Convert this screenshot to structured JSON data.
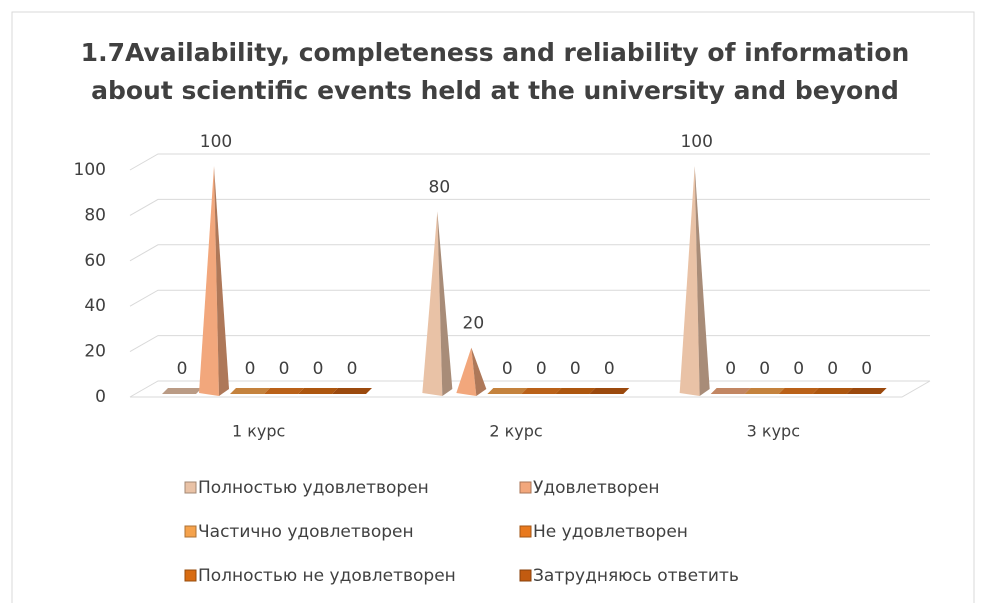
{
  "chart_data": {
    "type": "pyramid3d",
    "title": "1.7Availability, completeness and reliability of information about scientific events held at the university and beyond",
    "categories": [
      "1 курс",
      "2 курс",
      "3 курс"
    ],
    "series": [
      {
        "name": "Полностью удовлетворен",
        "color": "#e9c2a6",
        "values": [
          0,
          80,
          100
        ]
      },
      {
        "name": "Удовлетворен",
        "color": "#f2a77c",
        "values": [
          100,
          20,
          0
        ]
      },
      {
        "name": "Частично удовлетворен",
        "color": "#f5a24c",
        "values": [
          0,
          0,
          0
        ]
      },
      {
        "name": "Не удовлетворен",
        "color": "#e8791e",
        "values": [
          0,
          0,
          0
        ]
      },
      {
        "name": "Полностью не удовлетворен",
        "color": "#d86c12",
        "values": [
          0,
          0,
          0
        ]
      },
      {
        "name": "Затрудняюсь ответить",
        "color": "#c25b10",
        "values": [
          0,
          0,
          0
        ]
      }
    ],
    "ylim": [
      0,
      100
    ],
    "yticks": [
      0,
      20,
      40,
      60,
      80,
      100
    ],
    "grid": true,
    "legend": "bottom"
  }
}
